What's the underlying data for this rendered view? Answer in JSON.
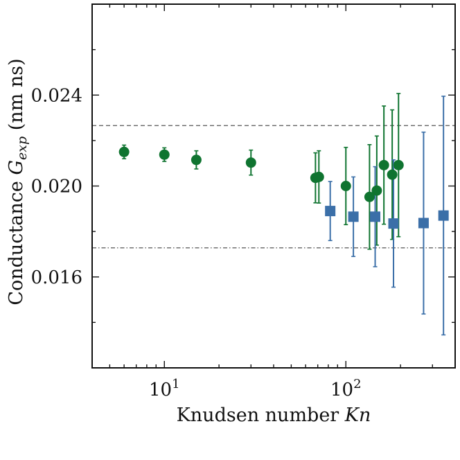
{
  "chart_data": {
    "type": "scatter",
    "xlabel": {
      "text": "Knudsen number ",
      "symbol": "Kn"
    },
    "ylabel": {
      "text": "Conductance ",
      "symbol": "G",
      "subscript": "exp",
      "unit": " (nm ns)"
    },
    "x_scale": "log",
    "xlim": [
      4,
      400
    ],
    "ylim": [
      0.012,
      0.028
    ],
    "x_ticks": [
      {
        "value": 10,
        "base": "10",
        "exp": "1"
      },
      {
        "value": 100,
        "base": "10",
        "exp": "2"
      }
    ],
    "y_ticks": [
      {
        "value": 0.016,
        "label": "0.016"
      },
      {
        "value": 0.02,
        "label": "0.020"
      },
      {
        "value": 0.024,
        "label": "0.024"
      }
    ],
    "y_minor_ticks": [
      0.014,
      0.018,
      0.022,
      0.026
    ],
    "grid": false,
    "reference_lines": [
      {
        "y": 0.02266,
        "style": "dashed"
      },
      {
        "y": 0.01728,
        "style": "dashdot"
      }
    ],
    "series": [
      {
        "marker": "circle",
        "color": "#0f7430",
        "points": [
          {
            "x": 6,
            "y": 0.0215,
            "err": 0.0003
          },
          {
            "x": 10,
            "y": 0.02138,
            "err": 0.0003
          },
          {
            "x": 15,
            "y": 0.02115,
            "err": 0.0004
          },
          {
            "x": 30,
            "y": 0.02103,
            "err": 0.00055
          },
          {
            "x": 68,
            "y": 0.02036,
            "err": 0.0011
          },
          {
            "x": 71,
            "y": 0.0204,
            "err": 0.00115
          },
          {
            "x": 100,
            "y": 0.02,
            "err": 0.0017
          },
          {
            "x": 135,
            "y": 0.01952,
            "err": 0.0023
          },
          {
            "x": 148,
            "y": 0.0198,
            "err": 0.0024
          },
          {
            "x": 162,
            "y": 0.02092,
            "err": 0.0026
          },
          {
            "x": 180,
            "y": 0.0205,
            "err": 0.00285
          },
          {
            "x": 195,
            "y": 0.02092,
            "err": 0.00315
          }
        ]
      },
      {
        "marker": "square",
        "color": "#3b6fa8",
        "points": [
          {
            "x": 82,
            "y": 0.0189,
            "err": 0.0013
          },
          {
            "x": 110,
            "y": 0.01865,
            "err": 0.00175
          },
          {
            "x": 145,
            "y": 0.01865,
            "err": 0.0022
          },
          {
            "x": 183,
            "y": 0.01835,
            "err": 0.0028
          },
          {
            "x": 268,
            "y": 0.01837,
            "err": 0.004
          },
          {
            "x": 345,
            "y": 0.0187,
            "err": 0.00525
          }
        ]
      }
    ]
  }
}
